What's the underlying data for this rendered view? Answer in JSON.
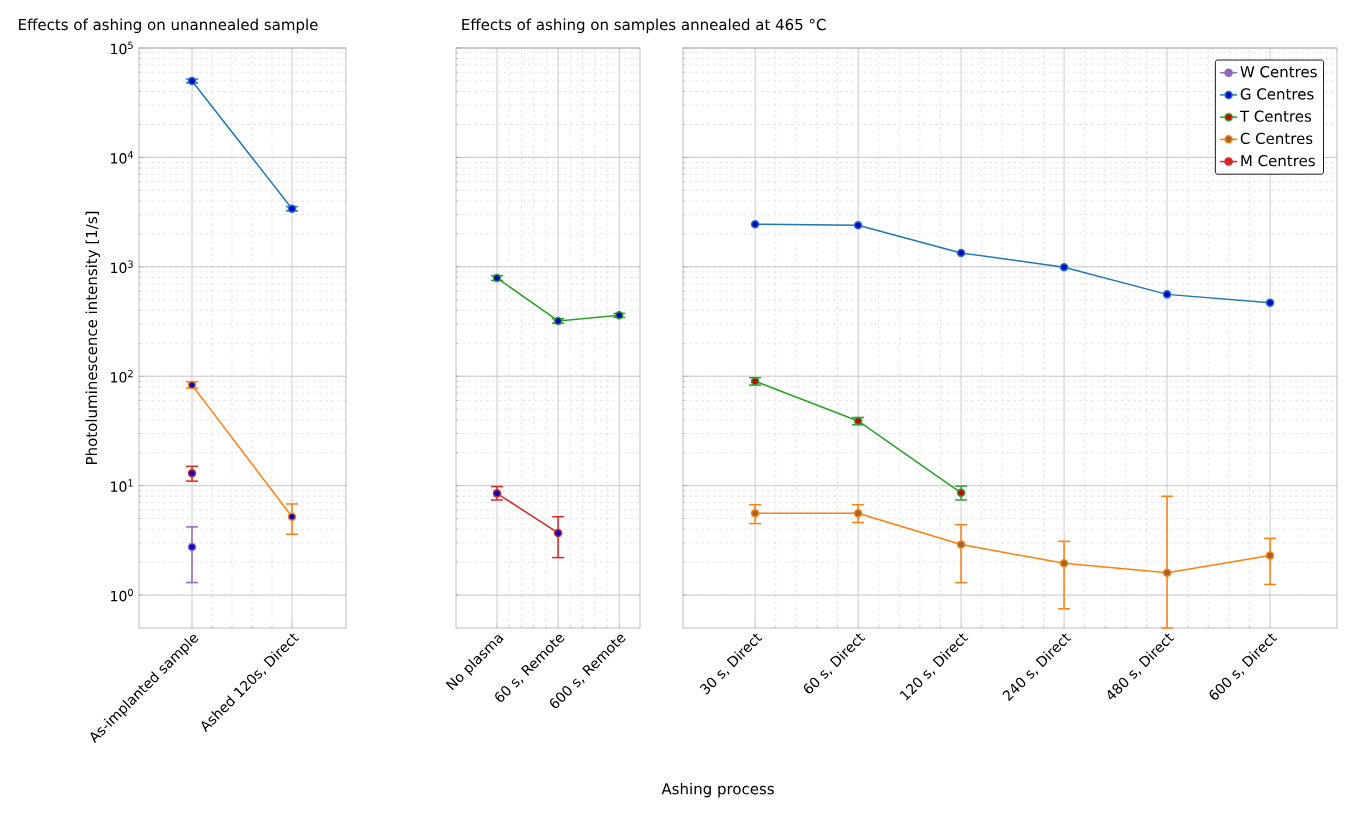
{
  "chart_data": [
    {
      "type": "line",
      "title": "Effects of ashing on unannealed sample",
      "ylabel": "Photoluminescence intensity [1/s]",
      "categories": [
        "As-implanted sample",
        "Ashed 120s, Direct"
      ],
      "log": true,
      "grid": true,
      "marker": "circle",
      "ylim": [
        0.5,
        100000
      ],
      "yticks": [
        {
          "value": 1,
          "label": "10$^{0}$"
        },
        {
          "value": 10,
          "label": "10$^{1}$"
        },
        {
          "value": 100,
          "label": "10$^{2}$"
        },
        {
          "value": 1000,
          "label": "10$^{3}$"
        },
        {
          "value": 10000,
          "label": "10$^{4}$"
        },
        {
          "value": 100000,
          "label": "10$^{5}$"
        }
      ],
      "series": [
        {
          "color": "#9467bd",
          "values": [
            2.75,
            null
          ],
          "errors": [
            [
              1.3,
              4.2
            ],
            null
          ]
        },
        {
          "color": "#1f77b4",
          "values": [
            50000,
            3400
          ],
          "errors": [
            [
              48000,
              52000
            ],
            [
              3250,
              3550
            ]
          ]
        },
        {
          "color": "#ff7f0e",
          "values": [
            83,
            5.2
          ],
          "errors": [
            [
              78,
              89
            ],
            [
              3.6,
              6.8
            ]
          ]
        },
        {
          "color": "#d62728",
          "values": [
            13,
            null
          ],
          "errors": [
            [
              11,
              15
            ],
            null
          ]
        }
      ]
    },
    {
      "type": "line",
      "title": "Effects of ashing on samples annealed at 465 °C",
      "xlabel": "Ashing process",
      "categories": [
        "No plasma",
        "60 s, Remote",
        "600 s, Remote"
      ],
      "log": true,
      "grid": true,
      "marker": "circle",
      "tick_labels": "x",
      "ylim": [
        0.5,
        100000
      ],
      "yticks": [
        1,
        10,
        100,
        1000,
        10000,
        100000
      ],
      "series": [
        {
          "color": "#2ca02c",
          "values": [
            790,
            320,
            360
          ],
          "errors": [
            [
              750,
              830
            ],
            [
              305,
              335
            ],
            [
              345,
              375
            ]
          ]
        },
        {
          "color": "#d62728",
          "values": [
            8.5,
            3.7,
            null
          ],
          "errors": [
            [
              7.4,
              9.8
            ],
            [
              2.2,
              5.2
            ],
            null
          ]
        }
      ]
    },
    {
      "type": "line",
      "categories": [
        "30 s, Direct",
        "60 s, Direct",
        "120 s, Direct",
        "240 s, Direct",
        "480 s, Direct",
        "600 s, Direct"
      ],
      "log": true,
      "grid": true,
      "marker": "circle",
      "tick_labels": "x",
      "legend": "top right",
      "ylim": [
        0.5,
        100000
      ],
      "yticks": [
        1,
        10,
        100,
        1000,
        10000,
        100000
      ],
      "series": [
        {
          "name": "W Centres",
          "color": "#9467bd",
          "values": [
            null,
            null,
            null,
            null,
            null,
            null
          ]
        },
        {
          "name": "G Centres",
          "color": "#1f77b4",
          "values": [
            2450,
            2400,
            1340,
            990,
            560,
            470
          ]
        },
        {
          "name": "T Centres",
          "color": "#2ca02c",
          "values": [
            90,
            39,
            8.6,
            null,
            null,
            null
          ],
          "errors": [
            [
              83,
              97
            ],
            [
              36,
              42
            ],
            [
              7.4,
              9.9
            ],
            null,
            null,
            null
          ]
        },
        {
          "name": "C Centres",
          "color": "#ff7f0e",
          "values": [
            5.6,
            5.6,
            2.9,
            1.95,
            1.6,
            2.3
          ],
          "errors": [
            [
              4.5,
              6.7
            ],
            [
              4.6,
              6.7
            ],
            [
              1.3,
              4.4
            ],
            [
              0.75,
              3.1
            ],
            [
              0.5,
              8.0
            ],
            [
              1.25,
              3.3
            ]
          ]
        },
        {
          "name": "M Centres",
          "color": "#d62728",
          "values": [
            null,
            null,
            null,
            null,
            null,
            null
          ]
        }
      ]
    }
  ]
}
